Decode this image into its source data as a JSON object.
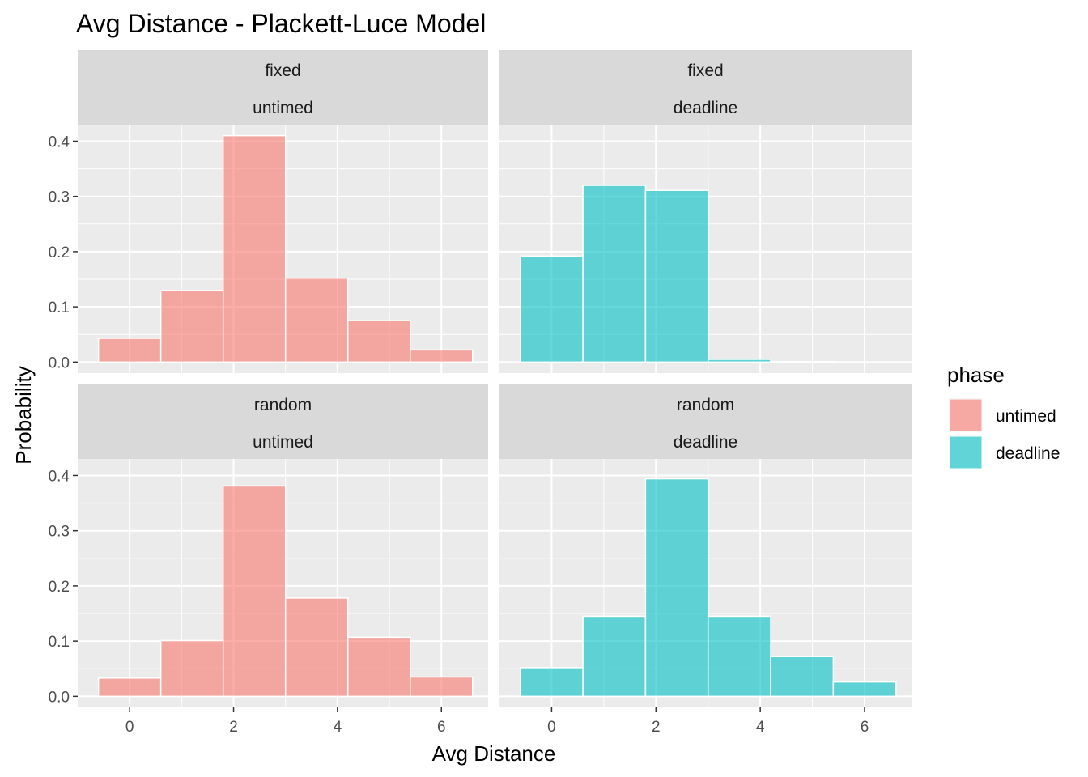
{
  "chart_data": {
    "type": "bar",
    "title": "Avg Distance - Plackett-Luce Model",
    "xlabel": "Avg Distance",
    "ylabel": "Probability",
    "x_ticks": [
      0,
      2,
      4,
      6
    ],
    "y_ticks": [
      0.0,
      0.1,
      0.2,
      0.3,
      0.4
    ],
    "y_tick_labels": [
      "0.0",
      "0.1",
      "0.2",
      "0.3",
      "0.4"
    ],
    "xlim": [
      -1.0,
      6.9
    ],
    "ylim": [
      -0.02,
      0.43
    ],
    "bin_width": 1.2,
    "bin_centers": [
      0,
      1.2,
      2.4,
      3.6,
      4.8,
      6.0
    ],
    "grid": true,
    "legend": {
      "title": "phase",
      "placement": "right",
      "entries": [
        {
          "label": "untimed",
          "color": "#f8766d"
        },
        {
          "label": "deadline",
          "color": "#00bfc4"
        }
      ]
    },
    "colors": {
      "untimed": "#f8766d",
      "deadline": "#00bfc4",
      "panel_bg": "#ebebeb",
      "strip_bg": "#d9d9d9",
      "grid": "#ffffff"
    },
    "panels": [
      {
        "row": 0,
        "col": 0,
        "strip": [
          "fixed",
          "untimed"
        ],
        "phase": "untimed",
        "values": [
          0.043,
          0.13,
          0.41,
          0.152,
          0.075,
          0.022
        ]
      },
      {
        "row": 0,
        "col": 1,
        "strip": [
          "fixed",
          "deadline"
        ],
        "phase": "deadline",
        "values": [
          0.192,
          0.32,
          0.311,
          0.005,
          0.001,
          0.0
        ]
      },
      {
        "row": 1,
        "col": 0,
        "strip": [
          "random",
          "untimed"
        ],
        "phase": "untimed",
        "values": [
          0.033,
          0.101,
          0.381,
          0.178,
          0.107,
          0.035
        ]
      },
      {
        "row": 1,
        "col": 1,
        "strip": [
          "random",
          "deadline"
        ],
        "phase": "deadline",
        "values": [
          0.052,
          0.145,
          0.394,
          0.145,
          0.072,
          0.026
        ]
      }
    ]
  }
}
